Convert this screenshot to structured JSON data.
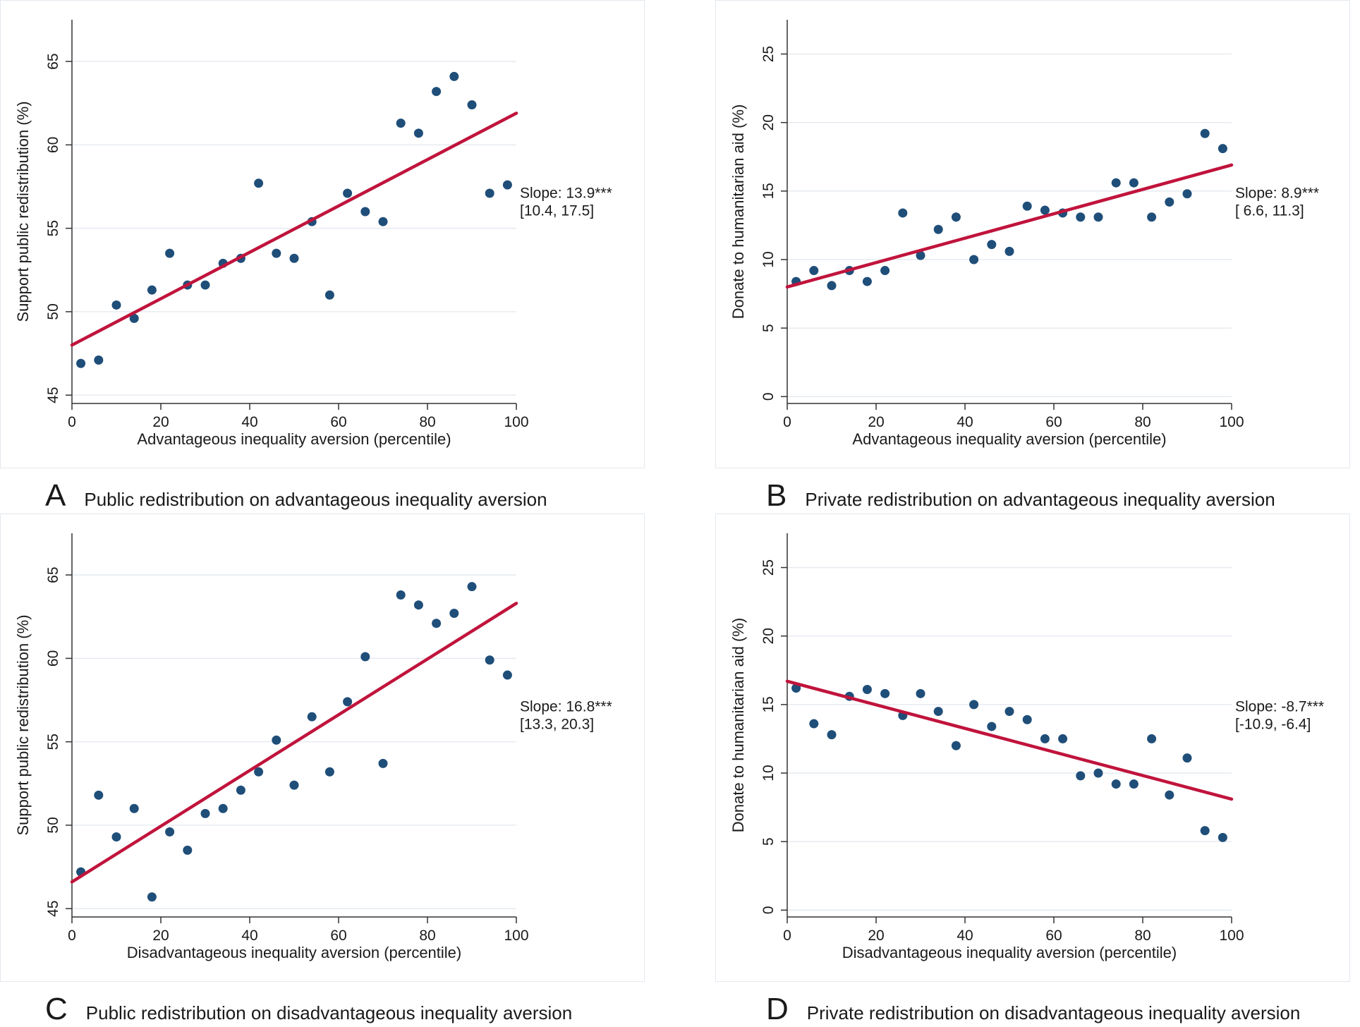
{
  "chart_data": [
    {
      "id": "A",
      "type": "scatter",
      "panel_letter": "A",
      "caption": "Public redistribution on advantageous inequality aversion",
      "xlabel": "Advantageous inequality aversion (percentile)",
      "ylabel": "Support public redistribution (%)",
      "xlim": [
        0,
        100
      ],
      "ylim": [
        44.5,
        67.5
      ],
      "xticks": [
        0,
        20,
        40,
        60,
        80,
        100
      ],
      "yticks": [
        45,
        50,
        55,
        60,
        65
      ],
      "grid": true,
      "x": [
        2,
        6,
        10,
        14,
        18,
        22,
        26,
        30,
        34,
        38,
        42,
        46,
        50,
        54,
        58,
        62,
        66,
        70,
        74,
        78,
        82,
        86,
        90,
        94,
        98
      ],
      "y": [
        46.9,
        47.1,
        50.4,
        49.6,
        51.3,
        53.5,
        51.6,
        51.6,
        52.9,
        53.2,
        57.7,
        53.5,
        53.2,
        55.4,
        51.0,
        57.1,
        56.0,
        55.4,
        61.3,
        60.7,
        63.2,
        64.1,
        62.4,
        57.1,
        57.6
      ],
      "fit": {
        "x": [
          0,
          100
        ],
        "y": [
          48.0,
          61.9
        ]
      },
      "annotation": {
        "line1": "Slope: 13.9***",
        "line2": "[10.4, 17.5]"
      },
      "colors": {
        "points": "#1f4e79",
        "line": "#c0143c"
      }
    },
    {
      "id": "B",
      "type": "scatter",
      "panel_letter": "B",
      "caption": "Private redistribution on advantageous inequality aversion",
      "xlabel": "Advantageous inequality aversion (percentile)",
      "ylabel": "Donate to humanitarian aid (%)",
      "xlim": [
        0,
        100
      ],
      "ylim": [
        -0.5,
        27.5
      ],
      "xticks": [
        0,
        20,
        40,
        60,
        80,
        100
      ],
      "yticks": [
        0,
        5,
        10,
        15,
        20,
        25
      ],
      "grid": true,
      "x": [
        2,
        6,
        10,
        14,
        18,
        22,
        26,
        30,
        34,
        38,
        42,
        46,
        50,
        54,
        58,
        62,
        66,
        70,
        74,
        78,
        82,
        86,
        90,
        94,
        98
      ],
      "y": [
        8.4,
        9.2,
        8.1,
        9.2,
        8.4,
        9.2,
        13.4,
        10.3,
        12.2,
        13.1,
        10.0,
        11.1,
        10.6,
        13.9,
        13.6,
        13.4,
        13.1,
        13.1,
        15.6,
        15.6,
        13.1,
        14.2,
        14.8,
        19.2,
        18.1
      ],
      "fit": {
        "x": [
          0,
          100
        ],
        "y": [
          8.0,
          16.9
        ]
      },
      "annotation": {
        "line1": "Slope:  8.9***",
        "line2": "[ 6.6, 11.3]"
      },
      "colors": {
        "points": "#1f4e79",
        "line": "#c0143c"
      }
    },
    {
      "id": "C",
      "type": "scatter",
      "panel_letter": "C",
      "caption": "Public redistribution on disadvantageous inequality aversion",
      "xlabel": "Disadvantageous inequality aversion (percentile)",
      "ylabel": "Support public redistribution (%)",
      "xlim": [
        0,
        100
      ],
      "ylim": [
        44.5,
        67.5
      ],
      "xticks": [
        0,
        20,
        40,
        60,
        80,
        100
      ],
      "yticks": [
        45,
        50,
        55,
        60,
        65
      ],
      "grid": true,
      "x": [
        2,
        6,
        10,
        14,
        18,
        22,
        26,
        30,
        34,
        38,
        42,
        46,
        50,
        54,
        58,
        62,
        66,
        70,
        74,
        78,
        82,
        86,
        90,
        94,
        98
      ],
      "y": [
        47.2,
        51.8,
        49.3,
        51.0,
        45.7,
        49.6,
        48.5,
        50.7,
        51.0,
        52.1,
        53.2,
        55.1,
        52.4,
        56.5,
        53.2,
        57.4,
        60.1,
        53.7,
        63.8,
        63.2,
        62.1,
        62.7,
        64.3,
        59.9,
        59.0
      ],
      "fit": {
        "x": [
          0,
          100
        ],
        "y": [
          46.6,
          63.3
        ]
      },
      "annotation": {
        "line1": "Slope: 16.8***",
        "line2": "[13.3, 20.3]"
      },
      "colors": {
        "points": "#1f4e79",
        "line": "#c0143c"
      }
    },
    {
      "id": "D",
      "type": "scatter",
      "panel_letter": "D",
      "caption": "Private redistribution on disadvantageous inequality aversion",
      "xlabel": "Disadvantageous inequality aversion (percentile)",
      "ylabel": "Donate to humanitarian aid (%)",
      "xlim": [
        0,
        100
      ],
      "ylim": [
        -0.5,
        27.5
      ],
      "xticks": [
        0,
        20,
        40,
        60,
        80,
        100
      ],
      "yticks": [
        0,
        5,
        10,
        15,
        20,
        25
      ],
      "grid": true,
      "x": [
        2,
        6,
        10,
        14,
        18,
        22,
        26,
        30,
        34,
        38,
        42,
        46,
        50,
        54,
        58,
        62,
        66,
        70,
        74,
        78,
        82,
        86,
        90,
        94,
        98
      ],
      "y": [
        16.2,
        13.6,
        12.8,
        15.6,
        16.1,
        15.8,
        14.2,
        15.8,
        14.5,
        12.0,
        15.0,
        13.4,
        14.5,
        13.9,
        12.5,
        12.5,
        9.8,
        10.0,
        9.2,
        9.2,
        12.5,
        8.4,
        11.1,
        5.8,
        5.3
      ],
      "fit": {
        "x": [
          0,
          100
        ],
        "y": [
          16.7,
          8.1
        ]
      },
      "annotation": {
        "line1": "Slope: -8.7***",
        "line2": "[-10.9, -6.4]"
      },
      "colors": {
        "points": "#1f4e79",
        "line": "#c0143c"
      }
    }
  ]
}
